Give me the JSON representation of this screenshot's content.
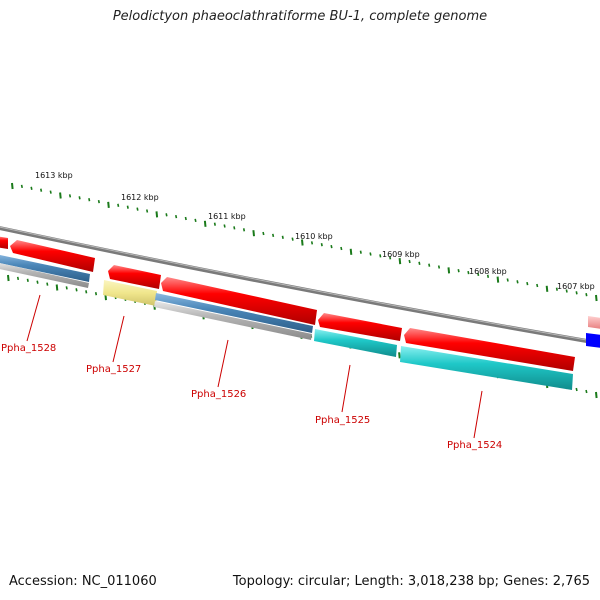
{
  "genome": {
    "title": "Pelodictyon phaeoclathratiforme BU-1, complete genome",
    "accession_label": "Accession: NC_011060",
    "summary": "Topology: circular; Length: 3,018,238 bp; Genes: 2,765"
  },
  "scale": {
    "ticks": [
      "1613 kbp",
      "1612 kbp",
      "1611 kbp",
      "1610 kbp",
      "1609 kbp",
      "1608 kbp",
      "1607 kbp"
    ]
  },
  "genes": [
    {
      "label": "Ppha_1528",
      "color": "#ff0000"
    },
    {
      "label": "Ppha_1527",
      "color": "#ff0000"
    },
    {
      "label": "Ppha_1526",
      "color": "#ff0000"
    },
    {
      "label": "Ppha_1525",
      "color": "#ff0000"
    },
    {
      "label": "Ppha_1524",
      "color": "#ff0000"
    }
  ],
  "colors": {
    "backbone": "#7a7a7a",
    "cds": "#ff0000",
    "steelblue": "#4a86b8",
    "gray": "#aaaaaa",
    "yellow": "#f0e68c",
    "cyan": "#1fc8c8",
    "blue": "#0000ff",
    "tick": "#1a7a1a"
  }
}
